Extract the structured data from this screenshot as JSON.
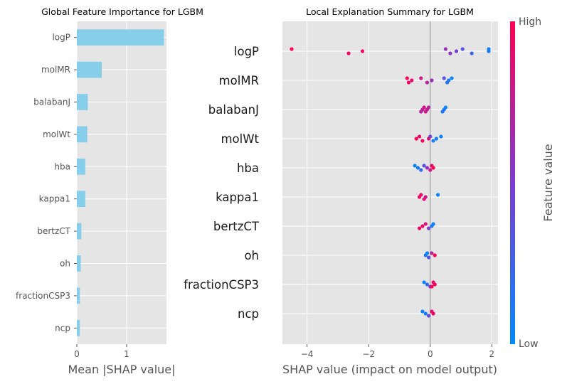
{
  "chart_data": [
    {
      "type": "bar",
      "orientation": "horizontal",
      "title": "Global Feature Importance for LGBM",
      "xlabel": "Mean |SHAP value|",
      "ylabel": "",
      "categories": [
        "logP",
        "molMR",
        "balabanJ",
        "molWt",
        "hba",
        "kappa1",
        "bertzCT",
        "oh",
        "fractionCSP3",
        "ncp"
      ],
      "values": [
        1.75,
        0.5,
        0.22,
        0.21,
        0.17,
        0.17,
        0.09,
        0.08,
        0.06,
        0.06
      ],
      "xlim": [
        0,
        1.8
      ],
      "xticks": [
        "0",
        "1"
      ],
      "bar_color": "#87ceeb",
      "grid": true
    },
    {
      "type": "scatter",
      "subtype": "beeswarm",
      "title": "Local Explanation Summary for LGBM",
      "xlabel": "SHAP value (impact on model output)",
      "xlim": [
        -4.8,
        2.2
      ],
      "xticks": [
        "−4",
        "−2",
        "0",
        "2"
      ],
      "features": [
        "logP",
        "molMR",
        "balabanJ",
        "molWt",
        "hba",
        "kappa1",
        "bertzCT",
        "oh",
        "fractionCSP3",
        "ncp"
      ],
      "points": [
        [
          [
            1.9,
            0.05
          ],
          [
            1.9,
            0.1
          ],
          [
            1.35,
            0.25
          ],
          [
            1.05,
            0.35
          ],
          [
            0.85,
            0.45
          ],
          [
            0.65,
            0.55
          ],
          [
            0.5,
            0.6
          ],
          [
            -2.2,
            0.95
          ],
          [
            -2.65,
            0.95
          ],
          [
            -4.5,
            1.0
          ]
        ],
        [
          [
            0.7,
            0.05
          ],
          [
            0.6,
            0.1
          ],
          [
            0.55,
            0.15
          ],
          [
            0.45,
            0.35
          ],
          [
            0.05,
            0.6
          ],
          [
            -0.1,
            0.7
          ],
          [
            -0.3,
            0.8
          ],
          [
            -0.6,
            0.92
          ],
          [
            -0.7,
            0.95
          ],
          [
            -0.75,
            1.0
          ]
        ],
        [
          [
            0.5,
            0.05
          ],
          [
            0.45,
            0.1
          ],
          [
            0.4,
            0.12
          ],
          [
            -0.05,
            0.7
          ],
          [
            -0.1,
            0.75
          ],
          [
            -0.15,
            0.8
          ],
          [
            -0.2,
            0.85
          ],
          [
            -0.25,
            0.75
          ],
          [
            -0.3,
            0.7
          ]
        ],
        [
          [
            0.35,
            0.05
          ],
          [
            0.2,
            0.08
          ],
          [
            0.1,
            0.1
          ],
          [
            0.0,
            0.4
          ],
          [
            -0.05,
            0.85
          ],
          [
            -0.25,
            0.95
          ],
          [
            -0.35,
            0.9
          ],
          [
            -0.45,
            1.0
          ]
        ],
        [
          [
            -0.5,
            0.05
          ],
          [
            -0.4,
            0.1
          ],
          [
            -0.3,
            0.2
          ],
          [
            -0.2,
            0.35
          ],
          [
            -0.1,
            0.6
          ],
          [
            0.0,
            0.8
          ],
          [
            0.05,
            0.9
          ],
          [
            0.1,
            1.0
          ]
        ],
        [
          [
            0.25,
            0.05
          ],
          [
            -0.15,
            0.8
          ],
          [
            -0.2,
            0.85
          ],
          [
            -0.3,
            0.9
          ],
          [
            -0.35,
            0.95
          ]
        ],
        [
          [
            0.1,
            0.05
          ],
          [
            0.05,
            0.1
          ],
          [
            -0.05,
            0.5
          ],
          [
            -0.15,
            0.85
          ],
          [
            -0.25,
            0.9
          ],
          [
            -0.35,
            0.95
          ]
        ],
        [
          [
            -0.1,
            0.05
          ],
          [
            -0.15,
            0.1
          ],
          [
            -0.05,
            0.35
          ],
          [
            0.05,
            0.7
          ],
          [
            0.15,
            1.0
          ]
        ],
        [
          [
            -0.2,
            0.05
          ],
          [
            -0.1,
            0.2
          ],
          [
            0.0,
            0.5
          ],
          [
            0.1,
            0.9
          ],
          [
            0.15,
            0.95
          ],
          [
            0.05,
            1.0
          ]
        ],
        [
          [
            -0.25,
            0.05
          ],
          [
            -0.15,
            0.1
          ],
          [
            -0.05,
            0.4
          ],
          [
            0.05,
            0.9
          ],
          [
            0.1,
            0.95
          ]
        ]
      ],
      "colorbar": {
        "label": "Feature value",
        "high": "High",
        "low": "Low",
        "low_color": "#008bfb",
        "high_color": "#ff0052"
      },
      "grid": true
    }
  ]
}
